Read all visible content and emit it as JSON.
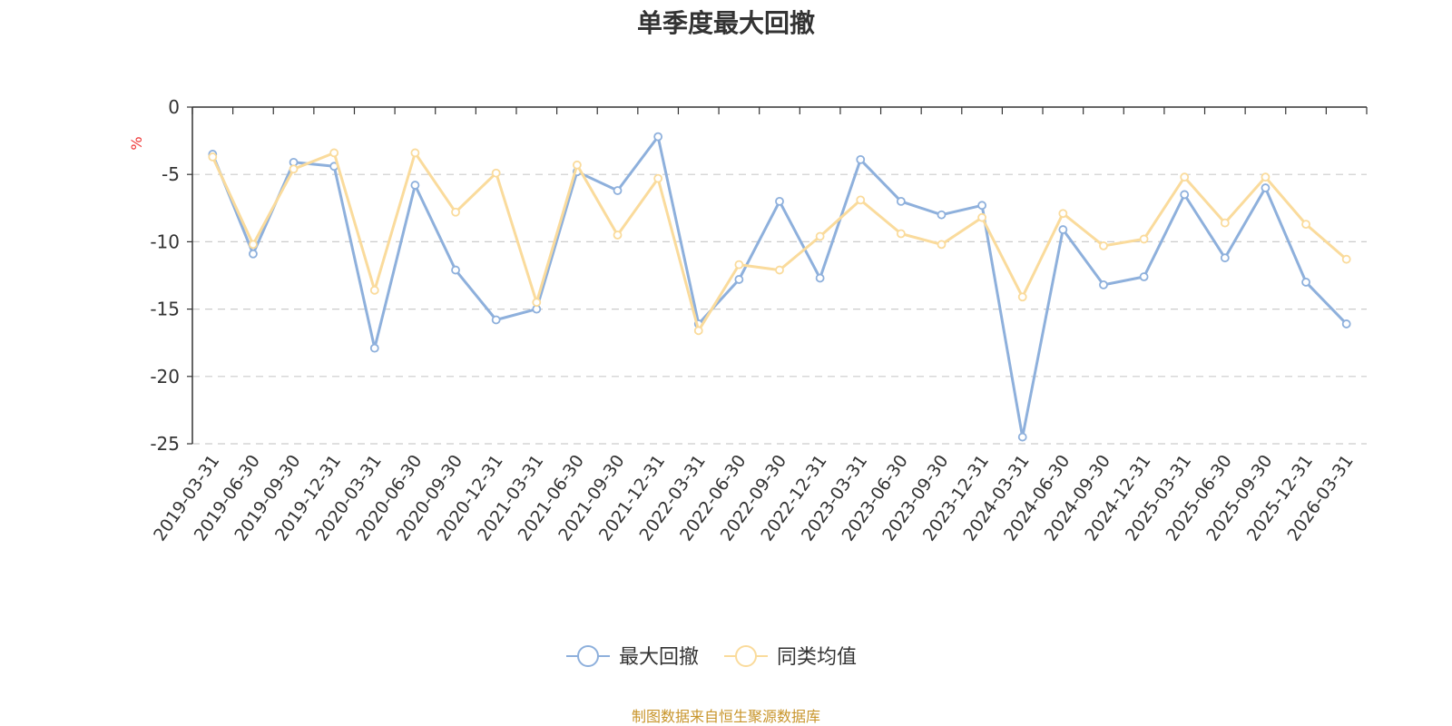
{
  "chart_data": {
    "type": "line",
    "title": "单季度最大回撤",
    "ylabel": "%",
    "ylim": [
      -25,
      0
    ],
    "yticks": [
      0,
      -5,
      -10,
      -15,
      -20,
      -25
    ],
    "grid": true,
    "legend_position": "bottom-center",
    "categories": [
      "2019-03-31",
      "2019-06-30",
      "2019-09-30",
      "2019-12-31",
      "2020-03-31",
      "2020-06-30",
      "2020-09-30",
      "2020-12-31",
      "2021-03-31",
      "2021-06-30",
      "2021-09-30",
      "2021-12-31",
      "2022-03-31",
      "2022-06-30",
      "2022-09-30",
      "2022-12-31",
      "2023-03-31",
      "2023-06-30",
      "2023-09-30",
      "2023-12-31",
      "2024-03-31",
      "2024-06-30",
      "2024-09-30",
      "2024-12-31",
      "2025-03-31",
      "2025-06-30",
      "2025-09-30",
      "2025-12-31",
      "2026-03-31"
    ],
    "series": [
      {
        "name": "最大回撤",
        "color": "#8eb0dc",
        "values": [
          -3.5,
          -10.9,
          -4.1,
          -4.4,
          -17.9,
          -5.8,
          -12.1,
          -15.8,
          -15.0,
          -4.8,
          -6.2,
          -2.2,
          -16.1,
          -12.8,
          -7.0,
          -12.7,
          -3.9,
          -7.0,
          -8.0,
          -7.3,
          -24.5,
          -9.1,
          -13.2,
          -12.6,
          -6.5,
          -11.2,
          -6.0,
          -13.0,
          -16.1
        ]
      },
      {
        "name": "同类均值",
        "color": "#fadb9c",
        "values": [
          -3.7,
          -10.2,
          -4.6,
          -3.4,
          -13.6,
          -3.4,
          -7.8,
          -4.9,
          -14.5,
          -4.3,
          -9.5,
          -5.3,
          -16.6,
          -11.7,
          -12.1,
          -9.6,
          -6.9,
          -9.4,
          -10.2,
          -8.2,
          -14.1,
          -7.9,
          -10.3,
          -9.8,
          -5.2,
          -8.6,
          -5.2,
          -8.7,
          -11.3
        ]
      }
    ]
  },
  "footer": {
    "source": "制图数据来自恒生聚源数据库"
  }
}
